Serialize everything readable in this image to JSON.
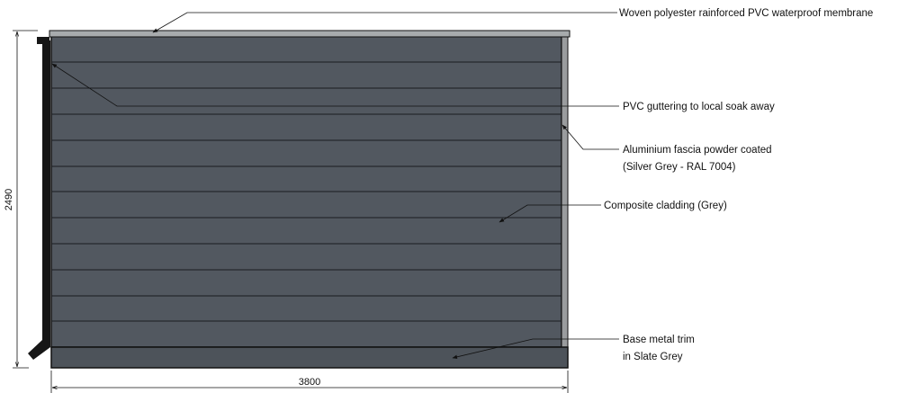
{
  "annotations": {
    "membrane": "Woven polyester rainforced PVC waterproof membrane",
    "guttering": "PVC guttering to local soak away",
    "fascia_line1": "Aluminium fascia powder coated",
    "fascia_line2": "(Silver Grey - RAL 7004)",
    "cladding": "Composite cladding (Grey)",
    "base_line1": "Base metal trim",
    "base_line2": "in Slate Grey"
  },
  "dimensions": {
    "width": "3800",
    "height": "2490"
  },
  "colors": {
    "cladding": "#525860",
    "membrane": "#a8abad",
    "fascia": "#9a9c9e",
    "base_trim": "#4d535a",
    "gutter": "#161616",
    "outline": "#111111"
  }
}
